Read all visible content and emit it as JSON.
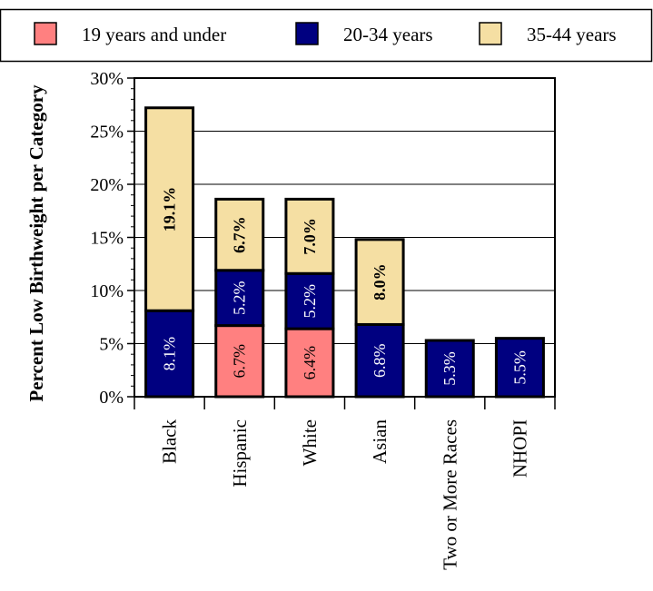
{
  "chart_data": {
    "type": "bar",
    "stacked": true,
    "categories": [
      "Black",
      "Hispanic",
      "White",
      "Asian",
      "Two or More Races",
      "NHOPI"
    ],
    "series": [
      {
        "name": "19 years and under",
        "color": "#ff8080",
        "values": [
          null,
          6.7,
          6.4,
          null,
          null,
          null
        ],
        "labels": [
          "",
          "6.7%",
          "6.4%",
          "",
          "",
          ""
        ]
      },
      {
        "name": "20-34 years",
        "color": "#000080",
        "values": [
          8.1,
          5.2,
          5.2,
          6.8,
          5.3,
          5.5
        ],
        "labels": [
          "8.1%",
          "5.2%",
          "5.2%",
          "6.8%",
          "5.3%",
          "5.5%"
        ]
      },
      {
        "name": "35-44 years",
        "color": "#f5dfa3",
        "values": [
          19.1,
          6.7,
          7.0,
          8.0,
          null,
          null
        ],
        "labels": [
          "19.1%",
          "6.7%",
          "7.0%",
          "8.0%",
          "",
          ""
        ]
      }
    ],
    "ylabel": "Percent Low Birthweight per Category",
    "ylim": [
      0,
      30
    ],
    "yticks": [
      "0%",
      "5%",
      "10%",
      "15%",
      "20%",
      "25%",
      "30%"
    ],
    "grid": true,
    "legend": "top"
  }
}
